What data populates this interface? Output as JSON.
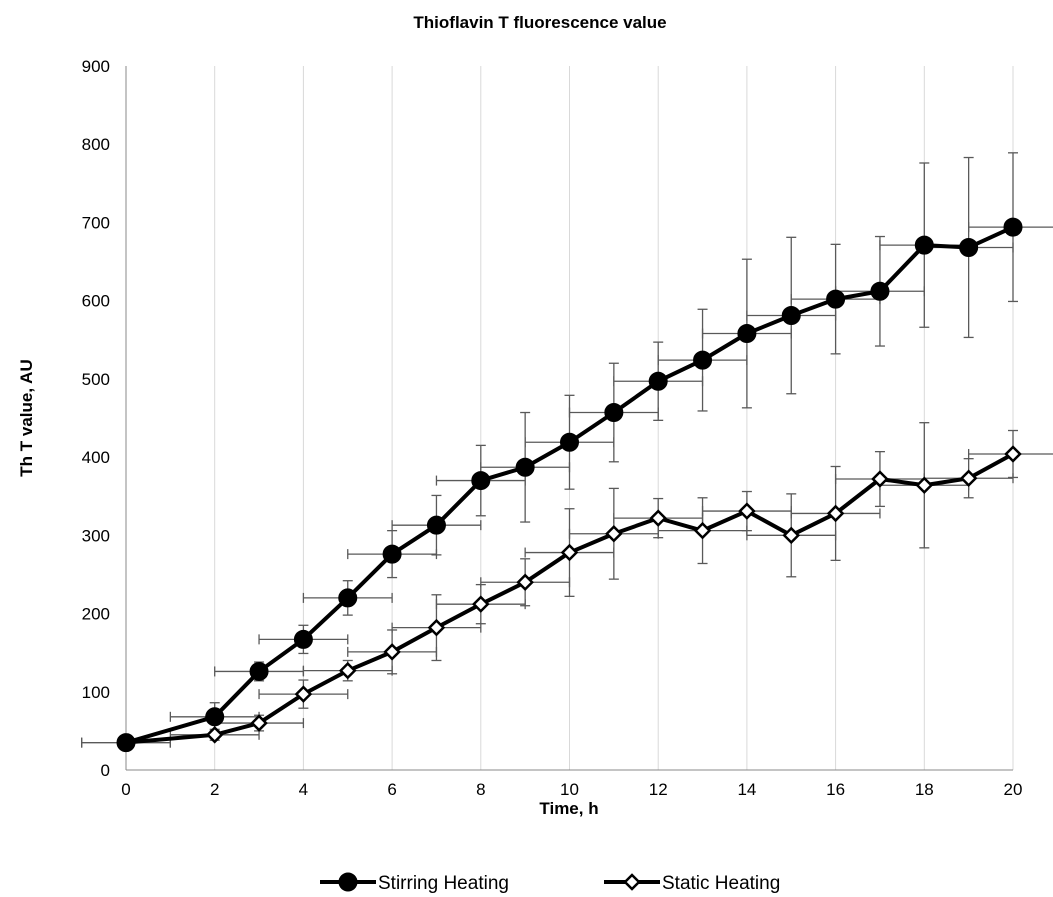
{
  "chart_data": {
    "type": "line",
    "title": "Thioflavin T fluorescence value",
    "xlabel": "Time, h",
    "ylabel": "Th T value, AU",
    "xlim": [
      0,
      20
    ],
    "ylim": [
      0,
      900
    ],
    "xticks": [
      0,
      2,
      4,
      6,
      8,
      10,
      12,
      14,
      16,
      18,
      20
    ],
    "yticks": [
      0,
      100,
      200,
      300,
      400,
      500,
      600,
      700,
      800,
      900
    ],
    "grid": "vertical",
    "legend_position": "bottom",
    "series": [
      {
        "name": "Stirring Heating",
        "marker": "filled-circle",
        "color": "#000000",
        "x": [
          0,
          2,
          3,
          4,
          5,
          6,
          7,
          8,
          9,
          10,
          11,
          12,
          13,
          14,
          15,
          16,
          17,
          18,
          19,
          20
        ],
        "y": [
          35,
          68,
          126,
          167,
          220,
          276,
          313,
          370,
          387,
          419,
          457,
          497,
          524,
          558,
          581,
          602,
          612,
          671,
          668,
          694
        ],
        "y_error": [
          5,
          18,
          12,
          18,
          22,
          30,
          38,
          45,
          70,
          60,
          63,
          50,
          65,
          95,
          100,
          70,
          70,
          105,
          115,
          95
        ],
        "x_error": [
          1,
          1,
          1,
          1,
          1,
          1,
          1,
          1,
          1,
          1,
          1,
          1,
          1,
          1,
          1,
          1,
          1,
          1,
          1,
          1
        ]
      },
      {
        "name": "Static Heating",
        "marker": "open-diamond",
        "color": "#000000",
        "x": [
          0,
          2,
          3,
          4,
          5,
          6,
          7,
          8,
          9,
          10,
          11,
          12,
          13,
          14,
          15,
          16,
          17,
          18,
          19,
          20
        ],
        "y": [
          35,
          45,
          60,
          97,
          127,
          151,
          182,
          212,
          240,
          278,
          302,
          322,
          306,
          331,
          300,
          328,
          372,
          364,
          373,
          404
        ],
        "y_error": [
          5,
          7,
          10,
          18,
          13,
          28,
          42,
          25,
          30,
          56,
          58,
          25,
          42,
          25,
          53,
          60,
          35,
          80,
          25,
          30
        ],
        "x_error": [
          1,
          1,
          1,
          1,
          1,
          1,
          1,
          1,
          1,
          1,
          1,
          1,
          1,
          1,
          1,
          1,
          1,
          1,
          1,
          1
        ]
      }
    ]
  }
}
